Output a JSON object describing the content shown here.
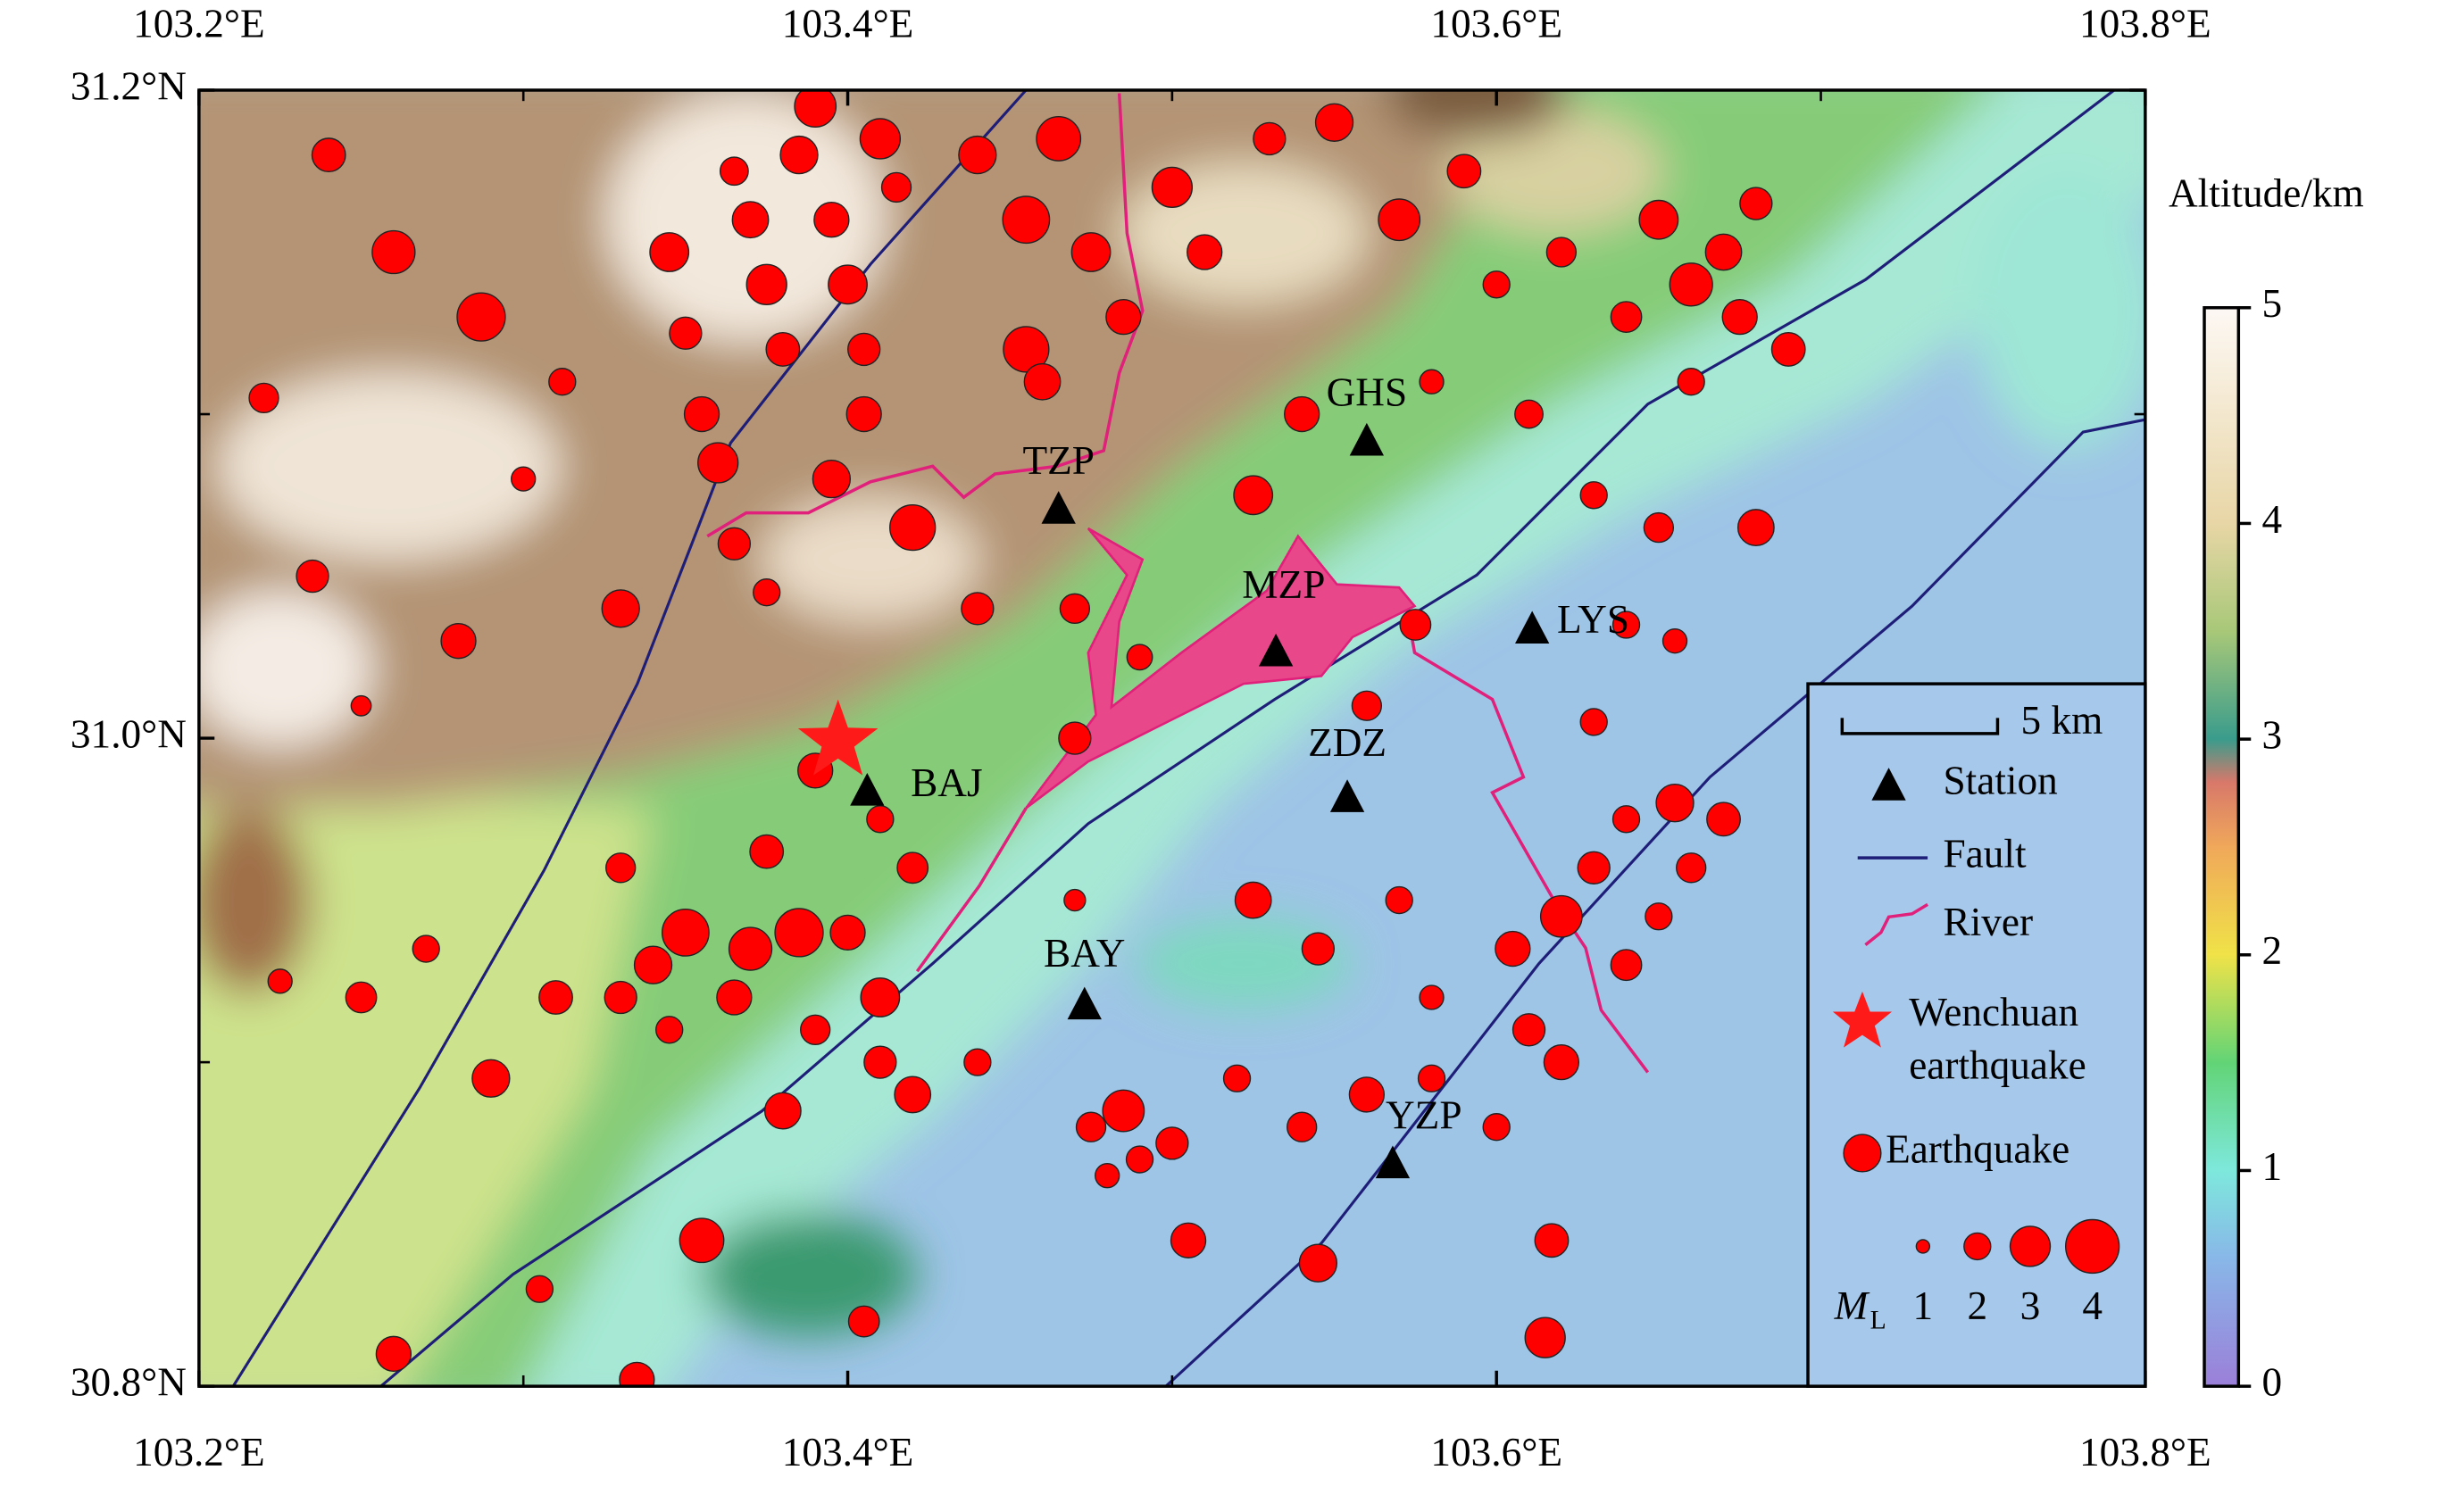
{
  "map": {
    "xlim": [
      103.2,
      103.8
    ],
    "ylim": [
      30.8,
      31.2
    ],
    "xticks": [
      {
        "value": 103.2,
        "label": "103.2°E"
      },
      {
        "value": 103.4,
        "label": "103.4°E"
      },
      {
        "value": 103.6,
        "label": "103.6°E"
      },
      {
        "value": 103.8,
        "label": "103.8°E"
      }
    ],
    "xminor": [
      103.3,
      103.5,
      103.7
    ],
    "yticks": [
      {
        "value": 30.8,
        "label": "30.8°N"
      },
      {
        "value": 31.0,
        "label": "31.0°N"
      },
      {
        "value": 31.2,
        "label": "31.2°N"
      }
    ],
    "yminor": [
      30.9,
      31.1
    ],
    "colorbar": {
      "label": "Altitude/km",
      "lim": [
        0,
        5
      ],
      "ticks": [
        0,
        1,
        2,
        3,
        4,
        5
      ]
    },
    "stations": [
      {
        "name": "TZP",
        "lon": 103.465,
        "lat": 31.071
      },
      {
        "name": "GHS",
        "lon": 103.56,
        "lat": 31.092
      },
      {
        "name": "MZP",
        "lon": 103.532,
        "lat": 31.027
      },
      {
        "name": "LYS",
        "lon": 103.611,
        "lat": 31.034
      },
      {
        "name": "ZDZ",
        "lon": 103.554,
        "lat": 30.982
      },
      {
        "name": "BAJ",
        "lon": 103.406,
        "lat": 30.984
      },
      {
        "name": "BAY",
        "lon": 103.473,
        "lat": 30.918
      },
      {
        "name": "YZP",
        "lon": 103.568,
        "lat": 30.869
      }
    ],
    "epicenter": {
      "lon": 103.397,
      "lat": 30.999
    },
    "earthquakes": {
      "lon": [
        103.24,
        103.26,
        103.287,
        103.22,
        103.3,
        103.235,
        103.28,
        103.25,
        103.33,
        103.312,
        103.345,
        103.35,
        103.355,
        103.36,
        103.365,
        103.37,
        103.375,
        103.38,
        103.385,
        103.39,
        103.395,
        103.4,
        103.405,
        103.41,
        103.415,
        103.365,
        103.375,
        103.395,
        103.42,
        103.405,
        103.44,
        103.455,
        103.465,
        103.475,
        103.485,
        103.455,
        103.46,
        103.5,
        103.51,
        103.53,
        103.55,
        103.57,
        103.59,
        103.6,
        103.62,
        103.65,
        103.66,
        103.67,
        103.68,
        103.675,
        103.64,
        103.69,
        103.66,
        103.58,
        103.525,
        103.54,
        103.61,
        103.63,
        103.65,
        103.68,
        103.575,
        103.64,
        103.655,
        103.44,
        103.47,
        103.49,
        103.39,
        103.41,
        103.42,
        103.375,
        103.35,
        103.37,
        103.385,
        103.4,
        103.34,
        103.33,
        103.33,
        103.365,
        103.39,
        103.41,
        103.41,
        103.38,
        103.345,
        103.31,
        103.29,
        103.27,
        103.25,
        103.225,
        103.355,
        103.26,
        103.305,
        103.335,
        103.405,
        103.42,
        103.44,
        103.475,
        103.485,
        103.49,
        103.5,
        103.48,
        103.52,
        103.54,
        103.56,
        103.525,
        103.545,
        103.57,
        103.58,
        103.61,
        103.62,
        103.64,
        103.65,
        103.63,
        103.66,
        103.67,
        103.655,
        103.64,
        103.62,
        103.605,
        103.6,
        103.545,
        103.615,
        103.617,
        103.505,
        103.58,
        103.47,
        103.63,
        103.56,
        103.47
      ],
      "lat": [
        31.18,
        31.15,
        31.13,
        31.105,
        31.08,
        31.05,
        31.03,
        31.01,
        31.04,
        31.11,
        31.15,
        31.125,
        31.1,
        31.085,
        31.175,
        31.16,
        31.14,
        31.12,
        31.18,
        31.195,
        31.16,
        31.14,
        31.12,
        31.185,
        31.17,
        31.06,
        31.045,
        31.08,
        31.065,
        31.1,
        31.18,
        31.16,
        31.185,
        31.15,
        31.13,
        31.12,
        31.11,
        31.17,
        31.15,
        31.185,
        31.19,
        31.16,
        31.175,
        31.14,
        31.15,
        31.16,
        31.14,
        31.15,
        31.165,
        31.13,
        31.13,
        31.12,
        31.11,
        31.11,
        31.075,
        31.1,
        31.1,
        31.075,
        31.065,
        31.065,
        31.035,
        31.035,
        31.03,
        31.04,
        31.04,
        31.025,
        30.99,
        30.975,
        30.96,
        30.965,
        30.94,
        30.935,
        30.94,
        30.94,
        30.93,
        30.96,
        30.92,
        30.92,
        30.91,
        30.92,
        30.9,
        30.885,
        30.91,
        30.92,
        30.895,
        30.935,
        30.92,
        30.925,
        30.845,
        30.81,
        30.83,
        30.802,
        30.82,
        30.89,
        30.9,
        30.88,
        30.885,
        30.87,
        30.875,
        30.865,
        30.895,
        30.88,
        30.89,
        30.95,
        30.935,
        30.95,
        30.895,
        30.91,
        30.9,
        30.93,
        30.945,
        30.96,
        30.96,
        30.975,
        30.98,
        30.975,
        30.945,
        30.935,
        30.88,
        30.838,
        30.815,
        30.845,
        30.845,
        30.92,
        30.95,
        31.005,
        31.01,
        31.0
      ],
      "ml": [
        2.5,
        3.2,
        3.6,
        2.2,
        1.8,
        2.4,
        2.6,
        1.5,
        2.8,
        2.0,
        2.9,
        2.4,
        2.6,
        3.0,
        2.1,
        2.7,
        3.0,
        2.5,
        2.8,
        3.1,
        2.6,
        2.9,
        2.4,
        3.0,
        2.2,
        2.4,
        2.0,
        2.8,
        3.4,
        2.6,
        2.8,
        3.5,
        3.3,
        2.9,
        2.6,
        3.4,
        2.7,
        3.0,
        2.6,
        2.4,
        2.8,
        3.1,
        2.5,
        2.0,
        2.2,
        2.9,
        3.2,
        2.7,
        2.4,
        2.6,
        2.3,
        2.5,
        2.0,
        1.8,
        2.9,
        2.6,
        2.1,
        2.0,
        2.2,
        2.7,
        2.3,
        2.0,
        1.8,
        2.4,
        2.2,
        1.9,
        2.6,
        2.0,
        2.3,
        2.5,
        3.5,
        3.2,
        3.6,
        2.6,
        2.8,
        2.2,
        2.4,
        2.6,
        2.2,
        2.9,
        2.4,
        2.7,
        2.0,
        2.5,
        2.8,
        2.0,
        2.3,
        1.8,
        3.3,
        2.6,
        2.0,
        2.6,
        2.3,
        2.7,
        2.0,
        2.2,
        3.1,
        2.0,
        2.4,
        1.8,
        2.0,
        2.2,
        2.6,
        2.7,
        2.4,
        2.0,
        2.0,
        2.4,
        2.6,
        2.3,
        2.0,
        2.4,
        2.2,
        2.5,
        2.8,
        2.0,
        3.1,
        2.6,
        2.0,
        2.8,
        3.0,
        2.5,
        2.6,
        1.8,
        1.6,
        2.0,
        2.2,
        2.4
      ]
    },
    "legend": {
      "scale": "5 km",
      "station": "Station",
      "fault": "Fault",
      "river": "River",
      "wenchuan": [
        "Wenchuan",
        "earthquake"
      ],
      "earthquake": "Earthquake",
      "magnitude_label": {
        "main": "M",
        "sub": "L"
      },
      "magnitudes": [
        1,
        2,
        3,
        4
      ]
    }
  }
}
